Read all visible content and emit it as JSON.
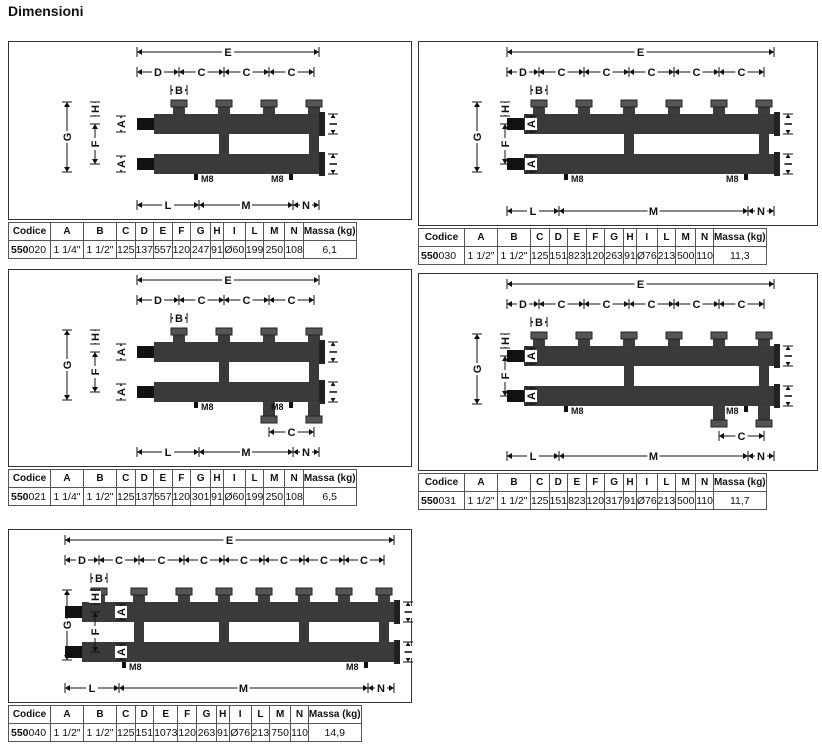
{
  "title": "Dimensioni",
  "headers": [
    "Codice",
    "A",
    "B",
    "C",
    "D",
    "E",
    "F",
    "G",
    "H",
    "I",
    "L",
    "M",
    "N",
    "Massa (kg)"
  ],
  "labels": {
    "E": "E",
    "D": "D",
    "C": "C",
    "B": "B",
    "A": "A",
    "F": "F",
    "G": "G",
    "H": "H",
    "I": "I",
    "L": "L",
    "M": "M",
    "N": "N",
    "M8": "M8"
  },
  "panels": [
    {
      "code_bold": "550",
      "code_rest": "020",
      "values": [
        "1 1/4\"",
        "1 1/2\"",
        "125",
        "137",
        "557",
        "120",
        "247",
        "91",
        "Ø60",
        "199",
        "250",
        "108",
        "6,1"
      ]
    },
    {
      "code_bold": "550",
      "code_rest": "030",
      "values": [
        "1 1/2\"",
        "1 1/2\"",
        "125",
        "151",
        "823",
        "120",
        "263",
        "91",
        "Ø76",
        "213",
        "500",
        "110",
        "11,3"
      ]
    },
    {
      "code_bold": "550",
      "code_rest": "021",
      "values": [
        "1 1/4\"",
        "1 1/2\"",
        "125",
        "137",
        "557",
        "120",
        "301",
        "91",
        "Ø60",
        "199",
        "250",
        "108",
        "6,5"
      ]
    },
    {
      "code_bold": "550",
      "code_rest": "031",
      "values": [
        "1 1/2\"",
        "1 1/2\"",
        "125",
        "151",
        "823",
        "120",
        "317",
        "91",
        "Ø76",
        "213",
        "500",
        "110",
        "11,7"
      ]
    },
    {
      "code_bold": "550",
      "code_rest": "040",
      "values": [
        "1 1/2\"",
        "1 1/2\"",
        "125",
        "151",
        "1073",
        "120",
        "263",
        "91",
        "Ø76",
        "213",
        "750",
        "110",
        "14,9"
      ]
    }
  ]
}
